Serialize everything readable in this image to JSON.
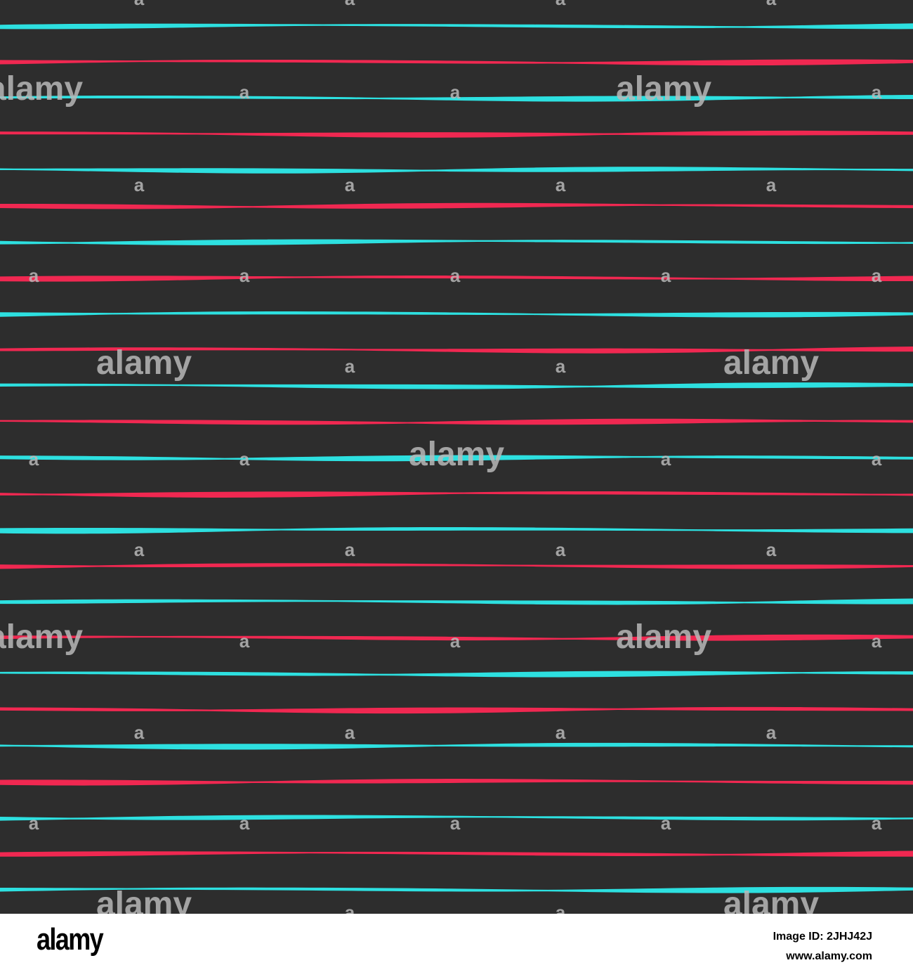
{
  "artwork": {
    "background_color": "#2d2d2d",
    "stripe_colors": [
      "#2de0e0",
      "#f02851"
    ],
    "stripe_count": 25,
    "watermark_logo": "alamy",
    "watermark_mark": "a",
    "watermark_color": "#b9b9b9"
  },
  "footer": {
    "logo": "alamy",
    "image_id": "Image ID: 2JHJ42J",
    "url": "www.alamy.com",
    "text_color": "#000000"
  }
}
